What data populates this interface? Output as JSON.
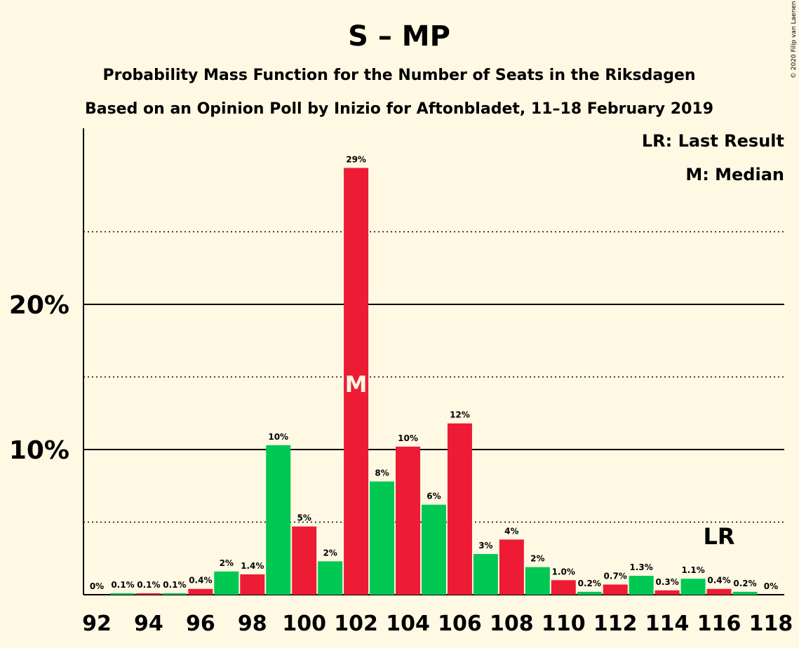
{
  "title": "S – MP",
  "subtitle1": "Probability Mass Function for the Number of Seats in the Riksdagen",
  "subtitle2": "Based on an Opinion Poll by Inizio for Aftonbladet, 11–18 February 2019",
  "copyright": "© 2020 Filip van Laenen",
  "legend": {
    "lr": "LR: Last Result",
    "median": "M: Median"
  },
  "markers": {
    "median_label": "M",
    "median_seat": 102,
    "lr_label": "LR",
    "lr_seat": 116
  },
  "colors": {
    "background": "#fff8e3",
    "red": "#ed1b34",
    "green": "#00c853"
  },
  "chart_data": {
    "type": "bar",
    "x": [
      92,
      93,
      94,
      95,
      96,
      97,
      98,
      99,
      100,
      101,
      102,
      103,
      104,
      105,
      106,
      107,
      108,
      109,
      110,
      111,
      112,
      113,
      114,
      115,
      116,
      117,
      118
    ],
    "values": [
      0,
      0.1,
      0.1,
      0.1,
      0.4,
      1.6,
      1.4,
      10.3,
      4.7,
      2.3,
      29.4,
      7.8,
      10.2,
      6.2,
      11.8,
      2.8,
      3.8,
      1.9,
      1.0,
      0.2,
      0.7,
      1.3,
      0.3,
      1.1,
      0.4,
      0.2,
      0
    ],
    "labels": [
      "0%",
      "0.1%",
      "0.1%",
      "0.1%",
      "0.4%",
      "2%",
      "1.4%",
      "10%",
      "5%",
      "2%",
      "29%",
      "8%",
      "10%",
      "6%",
      "12%",
      "3%",
      "4%",
      "2%",
      "1.0%",
      "0.2%",
      "0.7%",
      "1.3%",
      "0.3%",
      "1.1%",
      "0.4%",
      "0.2%",
      "0%"
    ],
    "xtick_labels": [
      "92",
      "94",
      "96",
      "98",
      "100",
      "102",
      "104",
      "106",
      "108",
      "110",
      "112",
      "114",
      "116",
      "118"
    ],
    "ytick_labels": [
      "10%",
      "20%"
    ],
    "ylim": [
      0,
      32
    ],
    "grid": "solid at 10% steps, dotted at 5% steps"
  }
}
